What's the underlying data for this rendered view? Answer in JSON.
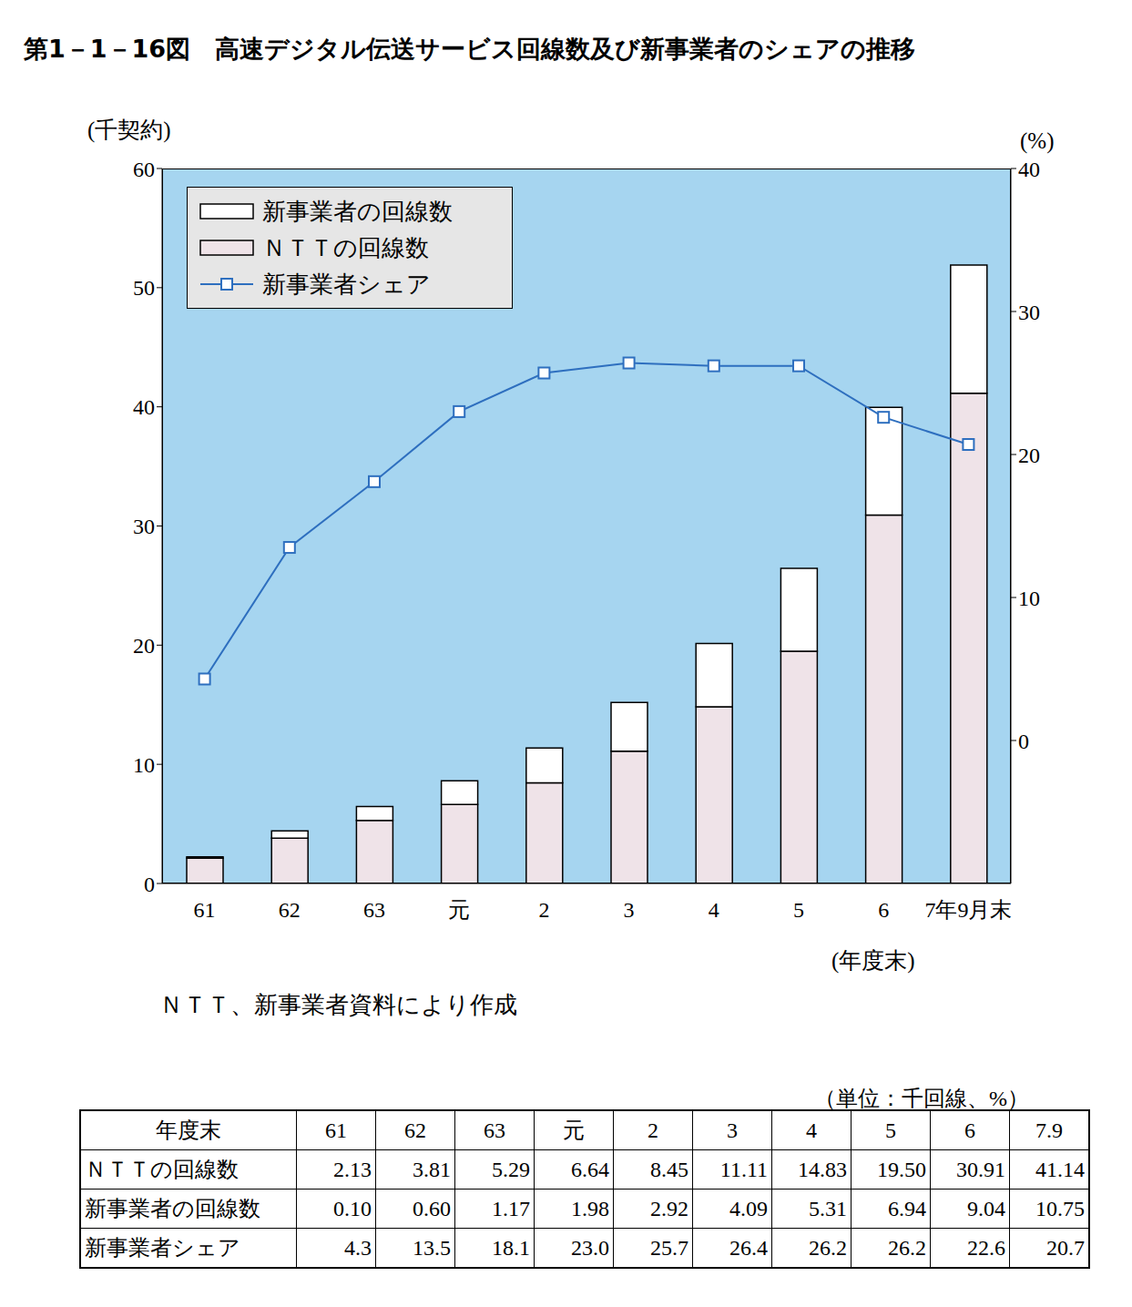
{
  "title": "第1－1－16図　高速デジタル伝送サービス回線数及び新事業者のシェアの推移",
  "chart_data": {
    "type": "bar",
    "stacked": true,
    "y_label": "(千契約)",
    "y2_label": "(%)",
    "x_label": "(年度末)",
    "categories": [
      "61",
      "62",
      "63",
      "元",
      "2",
      "3",
      "4",
      "5",
      "6",
      "7年9月末"
    ],
    "series": [
      {
        "name": "新事業者の回線数",
        "color": "#ffffff",
        "values": [
          0.1,
          0.6,
          1.17,
          1.98,
          2.92,
          4.09,
          5.31,
          6.94,
          9.04,
          10.75
        ]
      },
      {
        "name": "ＮＴＴの回線数",
        "color": "#efe3e8",
        "values": [
          2.13,
          3.81,
          5.29,
          6.64,
          8.45,
          11.11,
          14.83,
          19.5,
          30.91,
          41.14
        ]
      },
      {
        "name": "新事業者シェア",
        "type": "line",
        "axis": "y2",
        "color": "#2e6fbf",
        "marker": "square",
        "values": [
          4.3,
          13.5,
          18.1,
          23.0,
          25.7,
          26.4,
          26.2,
          26.2,
          22.6,
          20.7
        ]
      }
    ],
    "ylim": [
      0,
      60
    ],
    "yticks": [
      0,
      10,
      20,
      30,
      40,
      50,
      60
    ],
    "y2lim": [
      -10,
      40
    ],
    "y2ticks": [
      0,
      10,
      20,
      30,
      40
    ],
    "grid": false,
    "legend": "upper left"
  },
  "note": "ＮＴＴ、新事業者資料により作成",
  "table": {
    "unit": "（単位：千回線、%）",
    "header": [
      "年度末",
      "61",
      "62",
      "63",
      "元",
      "2",
      "3",
      "4",
      "5",
      "6",
      "7.9"
    ],
    "rows": [
      [
        "ＮＴＴの回線数",
        "2.13",
        "3.81",
        "5.29",
        "6.64",
        "8.45",
        "11.11",
        "14.83",
        "19.50",
        "30.91",
        "41.14"
      ],
      [
        "新事業者の回線数",
        "0.10",
        "0.60",
        "1.17",
        "1.98",
        "2.92",
        "4.09",
        "5.31",
        "6.94",
        "9.04",
        "10.75"
      ],
      [
        "新事業者シェア",
        "4.3",
        "13.5",
        "18.1",
        "23.0",
        "25.7",
        "26.4",
        "26.2",
        "26.2",
        "22.6",
        "20.7"
      ]
    ]
  }
}
